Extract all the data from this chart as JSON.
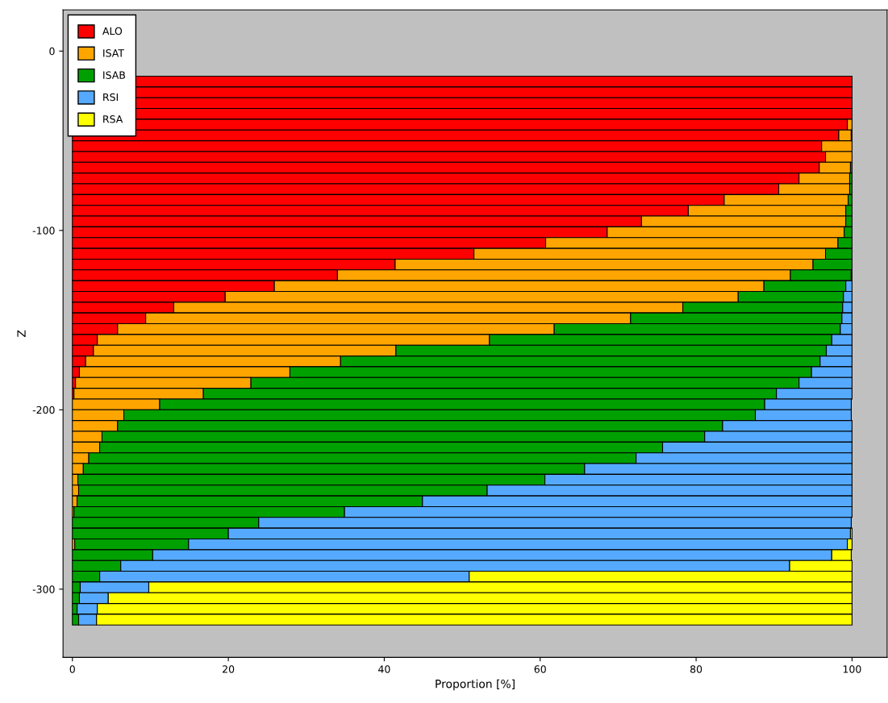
{
  "chart_data": {
    "type": "bar",
    "orientation": "horizontal",
    "stacked": true,
    "xlabel": "Proportion [%]",
    "ylabel": "Z",
    "x": [
      -17,
      -23,
      -29,
      -35,
      -41,
      -47,
      -53,
      -59,
      -65,
      -71,
      -77,
      -83,
      -89,
      -95,
      -101,
      -107,
      -113,
      -119,
      -125,
      -131,
      -137,
      -143,
      -149,
      -155,
      -161,
      -167,
      -173,
      -179,
      -185,
      -191,
      -197,
      -203,
      -209,
      -215,
      -221,
      -227,
      -233,
      -239,
      -245,
      -251,
      -257,
      -263,
      -269,
      -275,
      -281,
      -287,
      -293,
      -299,
      -305,
      -311,
      -317
    ],
    "xlim": [
      -1.2,
      104.5
    ],
    "xticks": [
      0,
      20,
      40,
      60,
      80,
      100
    ],
    "ylim": [
      -338,
      23
    ],
    "yticks": [
      0,
      -100,
      -200,
      -300
    ],
    "legend": "top left",
    "grid": false,
    "series": [
      {
        "name": "ALO",
        "color": "#ff0000",
        "values": [
          100,
          100,
          100,
          100,
          99.4,
          98.3,
          96.1,
          96.6,
          95.8,
          93.2,
          90.6,
          83.6,
          79.0,
          73.0,
          68.6,
          60.7,
          51.5,
          41.4,
          34.0,
          25.9,
          19.6,
          13.0,
          9.4,
          5.8,
          3.2,
          2.7,
          1.7,
          0.9,
          0.4,
          0.2,
          null,
          null,
          0,
          0,
          0,
          0,
          0,
          0,
          0,
          0,
          0,
          0,
          0,
          0,
          0,
          0,
          0,
          0,
          0,
          0,
          0
        ]
      },
      {
        "name": "ISAT",
        "color": "#ffa500",
        "values": [
          0,
          0,
          0,
          0,
          0.6,
          1.6,
          3.9,
          3.4,
          4.0,
          6.5,
          9.1,
          15.9,
          20.2,
          26.2,
          30.4,
          37.5,
          45.1,
          53.6,
          58.1,
          62.8,
          65.8,
          65.3,
          62.2,
          56.0,
          50.3,
          38.8,
          32.7,
          27.0,
          22.5,
          16.6,
          11.2,
          6.6,
          5.8,
          3.8,
          3.5,
          2.1,
          1.4,
          0.7,
          0.8,
          0.6,
          0.2,
          null,
          0,
          0.3,
          null,
          0,
          0,
          0,
          0,
          0,
          0
        ]
      },
      {
        "name": "ISAB",
        "color": "#00a000",
        "values": [
          0,
          0,
          0,
          0,
          0,
          0.1,
          0,
          0,
          0.2,
          0.3,
          0.3,
          0.5,
          0.8,
          0.8,
          1.0,
          1.8,
          3.4,
          5.0,
          7.8,
          10.5,
          13.5,
          20.5,
          27.1,
          36.7,
          43.9,
          55.2,
          61.5,
          66.9,
          70.3,
          73.5,
          77.6,
          81.0,
          77.6,
          77.3,
          72.2,
          70.2,
          64.3,
          59.9,
          52.4,
          44.3,
          34.7,
          23.9,
          20.0,
          14.6,
          10.3,
          6.2,
          3.5,
          1.0,
          0.9,
          0.6,
          0.8
        ]
      },
      {
        "name": "RSI",
        "color": "#55aaff",
        "values": [
          0,
          0,
          0,
          0,
          0,
          0,
          0,
          0,
          0,
          0,
          0,
          0,
          0,
          0,
          0,
          0,
          0,
          0,
          0.1,
          0.8,
          1.1,
          1.2,
          1.3,
          1.5,
          2.6,
          3.3,
          4.1,
          5.2,
          6.8,
          9.7,
          11.1,
          12.3,
          16.6,
          18.9,
          24.3,
          27.7,
          34.3,
          39.4,
          46.8,
          55.1,
          65.1,
          76.0,
          79.8,
          84.5,
          87.1,
          85.8,
          47.4,
          8.8,
          3.7,
          2.6,
          2.3
        ]
      },
      {
        "name": "RSA",
        "color": "#ffff00",
        "values": [
          0,
          0,
          0,
          0,
          0,
          0,
          0,
          0,
          0,
          0,
          0,
          0,
          0,
          0,
          0,
          0,
          0,
          0,
          0,
          0,
          0,
          0,
          0,
          0,
          0,
          0,
          0,
          0,
          0,
          0,
          0,
          0,
          0,
          0,
          0,
          0,
          0,
          0,
          0,
          0,
          0,
          0,
          0.2,
          0.6,
          2.5,
          8.0,
          49.1,
          90.2,
          95.4,
          96.8,
          96.9
        ]
      }
    ]
  }
}
